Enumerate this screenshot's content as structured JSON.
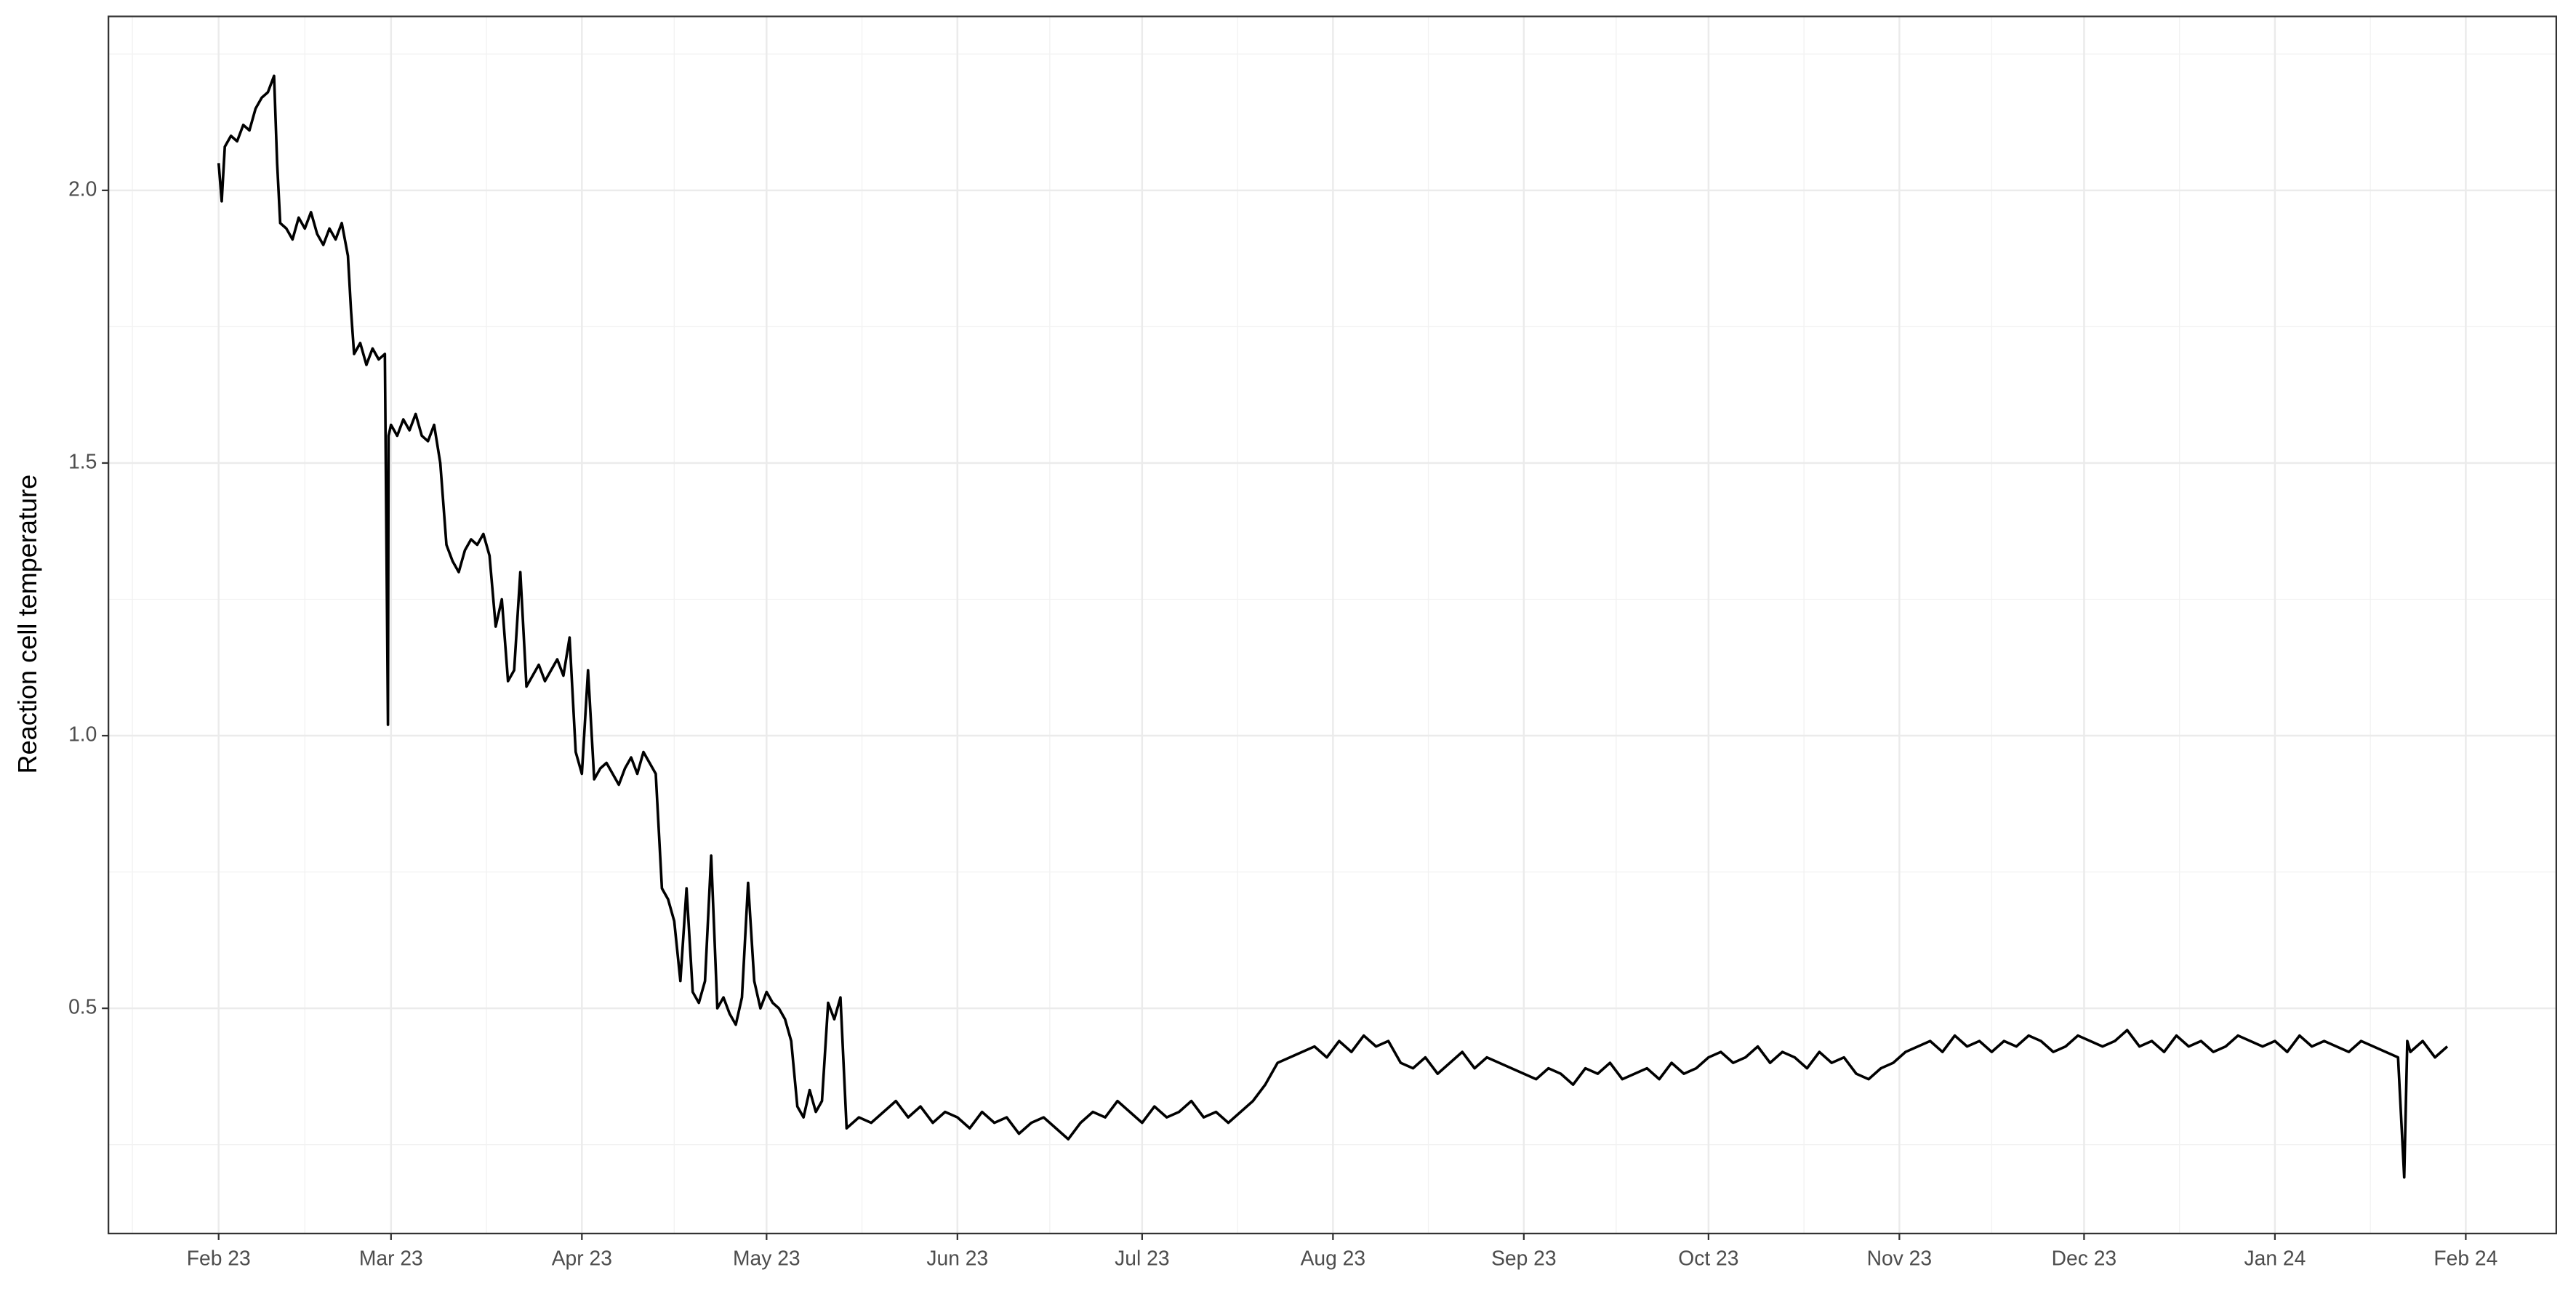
{
  "chart_data": {
    "type": "line",
    "y_label": "Reaction cell temperature",
    "color": "#000000",
    "grid": true,
    "x": [
      0,
      0.5,
      1,
      2,
      3,
      4,
      5,
      6,
      7,
      8,
      9,
      9.5,
      10,
      11,
      12,
      13,
      14,
      15,
      16,
      17,
      18,
      19,
      20,
      21,
      21.5,
      22,
      23,
      24,
      25,
      26,
      27,
      27.5,
      27.6,
      28,
      29,
      30,
      31,
      32,
      33,
      34,
      35,
      36,
      37,
      38,
      39,
      40,
      41,
      42,
      43,
      44,
      45,
      46,
      47,
      48,
      49,
      50,
      51,
      52,
      53,
      54,
      55,
      56,
      57,
      58,
      59,
      60,
      61,
      62,
      63,
      64,
      65,
      66,
      67,
      68,
      69,
      70,
      71,
      72,
      73,
      74,
      75,
      76,
      77,
      78,
      79,
      80,
      81,
      82,
      83,
      84,
      85,
      86,
      87,
      88,
      89,
      90,
      91,
      92,
      93,
      94,
      95,
      96,
      97,
      98,
      99,
      100,
      101,
      102,
      104,
      106,
      108,
      110,
      112,
      114,
      116,
      118,
      120,
      122,
      124,
      126,
      128,
      130,
      132,
      134,
      136,
      138,
      140,
      142,
      144,
      146,
      148,
      150,
      152,
      154,
      156,
      158,
      160,
      162,
      164,
      166,
      168,
      170,
      172,
      174,
      176,
      178,
      180,
      182,
      184,
      186,
      188,
      190,
      192,
      194,
      196,
      198,
      200,
      202,
      204,
      206,
      208,
      210,
      212,
      214,
      216,
      218,
      220,
      222,
      224,
      226,
      228,
      230,
      232,
      234,
      236,
      238,
      240,
      242,
      244,
      246,
      248,
      250,
      252,
      254,
      256,
      258,
      260,
      262,
      264,
      266,
      268,
      270,
      272,
      274,
      276,
      278,
      280,
      282,
      284,
      286,
      288,
      290,
      292,
      294,
      296,
      298,
      300,
      302,
      304,
      306,
      308,
      310,
      312,
      314,
      316,
      318,
      320,
      322,
      324,
      326,
      328,
      330,
      332,
      334,
      336,
      338,
      340,
      342,
      344,
      346,
      348,
      350,
      352,
      354,
      355,
      355.5,
      356,
      358,
      360,
      362
    ],
    "values": [
      2.05,
      1.98,
      2.08,
      2.1,
      2.09,
      2.12,
      2.11,
      2.15,
      2.17,
      2.18,
      2.21,
      2.05,
      1.94,
      1.93,
      1.91,
      1.95,
      1.93,
      1.96,
      1.92,
      1.9,
      1.93,
      1.91,
      1.94,
      1.88,
      1.78,
      1.7,
      1.72,
      1.68,
      1.71,
      1.69,
      1.7,
      1.02,
      1.55,
      1.57,
      1.55,
      1.58,
      1.56,
      1.59,
      1.55,
      1.54,
      1.57,
      1.5,
      1.35,
      1.32,
      1.3,
      1.34,
      1.36,
      1.35,
      1.37,
      1.33,
      1.2,
      1.25,
      1.1,
      1.12,
      1.3,
      1.09,
      1.11,
      1.13,
      1.1,
      1.12,
      1.14,
      1.11,
      1.18,
      0.97,
      0.93,
      1.12,
      0.92,
      0.94,
      0.95,
      0.93,
      0.91,
      0.94,
      0.96,
      0.93,
      0.97,
      0.95,
      0.93,
      0.72,
      0.7,
      0.66,
      0.55,
      0.72,
      0.53,
      0.51,
      0.55,
      0.78,
      0.5,
      0.52,
      0.49,
      0.47,
      0.52,
      0.73,
      0.55,
      0.5,
      0.53,
      0.51,
      0.5,
      0.48,
      0.44,
      0.32,
      0.3,
      0.35,
      0.31,
      0.33,
      0.51,
      0.48,
      0.52,
      0.28,
      0.3,
      0.29,
      0.31,
      0.33,
      0.3,
      0.32,
      0.29,
      0.31,
      0.3,
      0.28,
      0.31,
      0.29,
      0.3,
      0.27,
      0.29,
      0.3,
      0.28,
      0.26,
      0.29,
      0.31,
      0.3,
      0.33,
      0.31,
      0.29,
      0.32,
      0.3,
      0.31,
      0.33,
      0.3,
      0.31,
      0.29,
      0.31,
      0.33,
      0.36,
      0.4,
      0.41,
      0.42,
      0.43,
      0.41,
      0.44,
      0.42,
      0.45,
      0.43,
      0.44,
      0.4,
      0.39,
      0.41,
      0.38,
      0.4,
      0.42,
      0.39,
      0.41,
      0.4,
      0.39,
      0.38,
      0.37,
      0.39,
      0.38,
      0.36,
      0.39,
      0.38,
      0.4,
      0.37,
      0.38,
      0.39,
      0.37,
      0.4,
      0.38,
      0.39,
      0.41,
      0.42,
      0.4,
      0.41,
      0.43,
      0.4,
      0.42,
      0.41,
      0.39,
      0.42,
      0.4,
      0.41,
      0.38,
      0.37,
      0.39,
      0.4,
      0.42,
      0.43,
      0.44,
      0.42,
      0.45,
      0.43,
      0.44,
      0.42,
      0.44,
      0.43,
      0.45,
      0.44,
      0.42,
      0.43,
      0.45,
      0.44,
      0.43,
      0.44,
      0.46,
      0.43,
      0.44,
      0.42,
      0.45,
      0.43,
      0.44,
      0.42,
      0.43,
      0.45,
      0.44,
      0.43,
      0.44,
      0.42,
      0.45,
      0.43,
      0.44,
      0.43,
      0.42,
      0.44,
      0.43,
      0.42,
      0.41,
      0.19,
      0.44,
      0.42,
      0.44,
      0.41,
      0.43
    ],
    "xlim": [
      -17.9,
      379.7
    ],
    "xticks": [
      {
        "value": 0,
        "label": "Feb 23"
      },
      {
        "value": 28,
        "label": "Mar 23"
      },
      {
        "value": 59,
        "label": "Apr 23"
      },
      {
        "value": 89,
        "label": "May 23"
      },
      {
        "value": 120,
        "label": "Jun 23"
      },
      {
        "value": 150,
        "label": "Jul 23"
      },
      {
        "value": 181,
        "label": "Aug 23"
      },
      {
        "value": 212,
        "label": "Sep 23"
      },
      {
        "value": 242,
        "label": "Oct 23"
      },
      {
        "value": 273,
        "label": "Nov 23"
      },
      {
        "value": 303,
        "label": "Dec 23"
      },
      {
        "value": 334,
        "label": "Jan 24"
      },
      {
        "value": 365,
        "label": "Feb 24"
      }
    ],
    "ylim": [
      0.087,
      2.319
    ],
    "yticks": [
      0.5,
      {
        "value": 1,
        "label": "1.0"
      },
      1.5,
      {
        "value": 2,
        "label": "2.0"
      }
    ]
  }
}
